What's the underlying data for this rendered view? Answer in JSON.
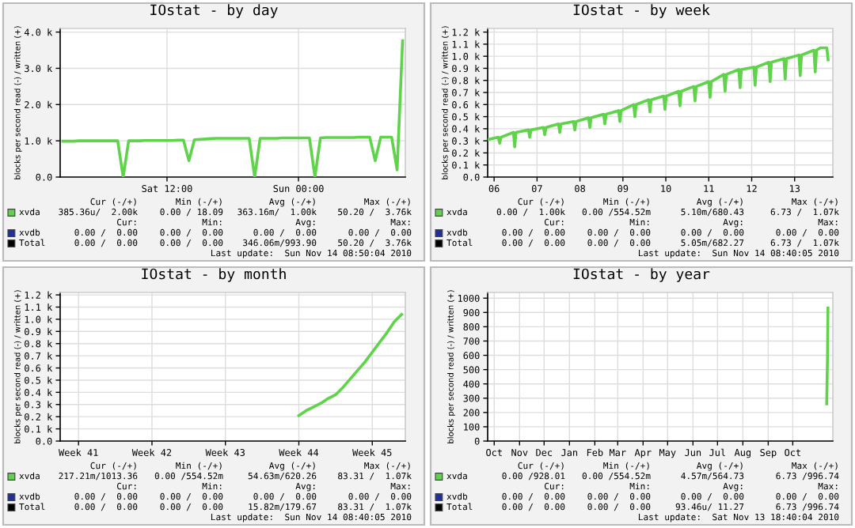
{
  "chart_data": [
    {
      "type": "line",
      "title": "IOstat - by day",
      "ylabel": "blocks per second read (-) / written (+)",
      "grid": true,
      "legend": "bottom",
      "marker": "none",
      "line_style": "solid",
      "categories": [
        null,
        null,
        null,
        null,
        null,
        null,
        null,
        null,
        null,
        null,
        null,
        null,
        null,
        null,
        null,
        null,
        null,
        null,
        null,
        "Sat 12:00",
        null,
        null,
        null,
        null,
        null,
        null,
        null,
        null,
        null,
        null,
        null,
        null,
        null,
        null,
        null,
        null,
        null,
        null,
        null,
        null,
        null,
        null,
        null,
        "Sun 00:00",
        null,
        null,
        null,
        null,
        null,
        null,
        null,
        null,
        null,
        null,
        null,
        null,
        null,
        null,
        null,
        null,
        null,
        null,
        null
      ],
      "ylim": [
        0,
        4100
      ],
      "yticks": [
        {
          "value": 0,
          "label": "0.0"
        },
        {
          "value": 1000,
          "label": "1.0 k"
        },
        {
          "value": 2000,
          "label": "2.0 k"
        },
        {
          "value": 3000,
          "label": "3.0 k"
        },
        {
          "value": 4000,
          "label": "4.0 k"
        }
      ],
      "series": [
        {
          "name": "xvda",
          "color": "#5fd34a",
          "values": [
            990,
            990,
            990,
            1000,
            1000,
            1000,
            1000,
            1000,
            1000,
            1000,
            1000,
            0,
            1000,
            1000,
            1000,
            1010,
            1010,
            1010,
            1010,
            1010,
            1010,
            1020,
            1020,
            450,
            1030,
            1040,
            1050,
            1060,
            1070,
            1070,
            1070,
            1070,
            1070,
            1070,
            1070,
            0,
            1070,
            1070,
            1070,
            1070,
            1080,
            1080,
            1080,
            1080,
            1080,
            1080,
            0,
            1080,
            1090,
            1090,
            1090,
            1090,
            1090,
            1090,
            1100,
            1100,
            1100,
            450,
            1100,
            1100,
            1100,
            200,
            3760
          ]
        },
        {
          "name": "xvdb",
          "color": "#1f2fa0",
          "values": [
            null,
            null,
            null,
            null,
            null,
            null,
            null,
            null,
            null,
            null,
            null,
            null,
            null,
            null,
            null,
            null,
            null,
            null,
            null,
            null,
            null,
            null,
            null,
            null,
            null,
            null,
            null,
            null,
            null,
            null,
            null,
            null,
            null,
            null,
            null,
            null,
            null,
            null,
            null,
            null,
            null,
            null,
            null,
            null,
            null,
            null,
            null,
            null,
            null,
            null,
            null,
            null,
            null,
            null,
            null,
            null,
            null,
            null,
            null,
            null,
            null,
            null,
            null
          ]
        },
        {
          "name": "Total",
          "color": "#000000",
          "values": [
            null,
            null,
            null,
            null,
            null,
            null,
            null,
            null,
            null,
            null,
            null,
            null,
            null,
            null,
            null,
            null,
            null,
            null,
            null,
            null,
            null,
            null,
            null,
            null,
            null,
            null,
            null,
            null,
            null,
            null,
            null,
            null,
            null,
            null,
            null,
            null,
            null,
            null,
            null,
            null,
            null,
            null,
            null,
            null,
            null,
            null,
            null,
            null,
            null,
            null,
            null,
            null,
            null,
            null,
            null,
            null,
            null,
            null,
            null,
            null,
            null,
            null,
            null
          ]
        }
      ],
      "annotations": [
        "Cur (-/+)",
        "Min (-/+)",
        "Avg (-/+)",
        "Max (-/+)",
        "385.36u/  2.00k",
        "0.00 / 18.09",
        "363.16m/  1.00k",
        "50.20 /  3.76k",
        "Cur:",
        "Min:",
        "Avg:",
        "Max:",
        "0.00 /  0.00",
        "0.00 /  0.00",
        "0.00 /  0.00",
        "0.00 /  0.00",
        "0.00 /  0.00",
        "0.00 /  0.00",
        "346.06m/993.90",
        "50.20 /  3.76k",
        "Last update:  Sun Nov 14 08:50:04 2010"
      ]
    },
    {
      "type": "line",
      "title": "IOstat - by week",
      "ylabel": "blocks per second read (-) / written (+)",
      "grid": true,
      "legend": "bottom",
      "marker": "none",
      "line_style": "solid",
      "xlim": [
        5.85,
        13.89
      ],
      "xticks": [
        {
          "value": 6,
          "label": "06"
        },
        {
          "value": 7,
          "label": "07"
        },
        {
          "value": 8,
          "label": "08"
        },
        {
          "value": 9,
          "label": "09"
        },
        {
          "value": 10,
          "label": "10"
        },
        {
          "value": 11,
          "label": "11"
        },
        {
          "value": 12,
          "label": "12"
        },
        {
          "value": 13,
          "label": "13"
        }
      ],
      "ylim": [
        0,
        1230
      ],
      "yticks": [
        {
          "value": 0,
          "label": "0.0"
        },
        {
          "value": 100,
          "label": "0.1 k"
        },
        {
          "value": 200,
          "label": "0.2 k"
        },
        {
          "value": 300,
          "label": "0.3 k"
        },
        {
          "value": 400,
          "label": "0.4 k"
        },
        {
          "value": 500,
          "label": "0.5 k"
        },
        {
          "value": 600,
          "label": "0.6 k"
        },
        {
          "value": 700,
          "label": "0.7 k"
        },
        {
          "value": 800,
          "label": "0.8 k"
        },
        {
          "value": 900,
          "label": "0.9 k"
        },
        {
          "value": 1000,
          "label": "1.0 k"
        },
        {
          "value": 1100,
          "label": "1.1 k"
        },
        {
          "value": 1200,
          "label": "1.2 k"
        }
      ],
      "series": [
        {
          "name": "xvda",
          "color": "#5fd34a",
          "x": [
            5.85,
            6.1,
            6.13,
            6.16,
            6.45,
            6.48,
            6.51,
            6.8,
            6.83,
            6.86,
            7.15,
            7.18,
            7.21,
            7.5,
            7.53,
            7.56,
            7.85,
            7.88,
            7.91,
            8.2,
            8.23,
            8.26,
            8.55,
            8.58,
            8.61,
            8.9,
            8.93,
            8.96,
            9.25,
            9.28,
            9.31,
            9.6,
            9.63,
            9.66,
            9.95,
            9.98,
            10.01,
            10.3,
            10.33,
            10.36,
            10.65,
            10.68,
            10.71,
            11.0,
            11.03,
            11.06,
            11.35,
            11.38,
            11.41,
            11.7,
            11.73,
            11.76,
            12.05,
            12.08,
            12.11,
            12.4,
            12.43,
            12.46,
            12.75,
            12.78,
            12.81,
            13.1,
            13.13,
            13.16,
            13.45,
            13.48,
            13.51,
            13.6,
            13.75,
            13.78
          ],
          "values": [
            310,
            330,
            280,
            330,
            370,
            250,
            370,
            390,
            330,
            390,
            410,
            350,
            410,
            440,
            370,
            440,
            460,
            390,
            460,
            490,
            410,
            490,
            520,
            440,
            520,
            550,
            460,
            550,
            600,
            500,
            600,
            640,
            540,
            640,
            670,
            560,
            670,
            710,
            590,
            710,
            750,
            630,
            750,
            790,
            660,
            790,
            850,
            710,
            850,
            890,
            740,
            890,
            910,
            760,
            910,
            950,
            790,
            950,
            980,
            810,
            980,
            1010,
            840,
            1010,
            1050,
            870,
            1050,
            1070,
            1070,
            970
          ]
        },
        {
          "name": "xvdb",
          "color": "#1f2fa0"
        },
        {
          "name": "Total",
          "color": "#000000"
        }
      ],
      "annotations": [
        "Cur (-/+)",
        "Min (-/+)",
        "Avg (-/+)",
        "Max (-/+)",
        "0.00 /  1.00k",
        "0.00 /554.52m",
        "5.10m/680.43",
        "6.73 /  1.07k",
        "Cur:",
        "Min:",
        "Avg:",
        "Max:",
        "0.00 /  0.00",
        "0.00 /  0.00",
        "0.00 /  0.00",
        "0.00 /  0.00",
        "0.00 /  0.00",
        "0.00 /  0.00",
        "5.05m/682.27",
        "6.73 /  1.07k",
        "Last update:  Sun Nov 14 08:40:05 2010"
      ]
    },
    {
      "type": "line",
      "title": "IOstat - by month",
      "ylabel": "blocks per second read (-) / written (+)",
      "grid": true,
      "legend": "bottom",
      "marker": "none",
      "line_style": "solid",
      "categories": [
        null,
        null,
        "Week 41",
        null,
        null,
        null,
        null,
        null,
        null,
        null,
        null,
        null,
        "Week 42",
        null,
        null,
        null,
        null,
        null,
        null,
        null,
        null,
        null,
        "Week 43",
        null,
        null,
        null,
        null,
        null,
        null,
        null,
        null,
        null,
        "Week 44",
        null,
        null,
        null,
        null,
        null,
        null,
        null,
        null,
        null,
        "Week 45",
        null,
        null,
        null,
        null
      ],
      "ylim": [
        0,
        1220
      ],
      "yticks": [
        {
          "value": 0,
          "label": "0.0"
        },
        {
          "value": 100,
          "label": "0.1 k"
        },
        {
          "value": 200,
          "label": "0.2 k"
        },
        {
          "value": 300,
          "label": "0.3 k"
        },
        {
          "value": 400,
          "label": "0.4 k"
        },
        {
          "value": 500,
          "label": "0.5 k"
        },
        {
          "value": 600,
          "label": "0.6 k"
        },
        {
          "value": 700,
          "label": "0.7 k"
        },
        {
          "value": 800,
          "label": "0.8 k"
        },
        {
          "value": 900,
          "label": "0.9 k"
        },
        {
          "value": 1000,
          "label": "1.0 k"
        },
        {
          "value": 1100,
          "label": "1.1 k"
        },
        {
          "value": 1200,
          "label": "1.2 k"
        }
      ],
      "series": [
        {
          "name": "xvda",
          "color": "#5fd34a",
          "values": [
            null,
            null,
            null,
            null,
            null,
            null,
            null,
            null,
            null,
            null,
            null,
            null,
            null,
            null,
            null,
            null,
            null,
            null,
            null,
            null,
            null,
            null,
            null,
            null,
            null,
            null,
            null,
            null,
            null,
            null,
            null,
            null,
            210,
            250,
            280,
            310,
            350,
            380,
            440,
            510,
            580,
            650,
            730,
            810,
            890,
            980,
            1040
          ]
        },
        {
          "name": "xvdb",
          "color": "#1f2fa0",
          "values": [
            null,
            null,
            null,
            null,
            null,
            null,
            null,
            null,
            null,
            null,
            null,
            null,
            null,
            null,
            null,
            null,
            null,
            null,
            null,
            null,
            null,
            null,
            null,
            null,
            null,
            null,
            null,
            null,
            null,
            null,
            null,
            null,
            null,
            null,
            null,
            null,
            null,
            null,
            null,
            null,
            null,
            null,
            null,
            null,
            null,
            null,
            null
          ]
        },
        {
          "name": "Total",
          "color": "#000000",
          "values": [
            null,
            null,
            null,
            null,
            null,
            null,
            null,
            null,
            null,
            null,
            null,
            null,
            null,
            null,
            null,
            null,
            null,
            null,
            null,
            null,
            null,
            null,
            null,
            null,
            null,
            null,
            null,
            null,
            null,
            null,
            null,
            null,
            null,
            null,
            null,
            null,
            null,
            null,
            null,
            null,
            null,
            null,
            null,
            null,
            null,
            null,
            null
          ]
        }
      ],
      "annotations": [
        "Cur (-/+)",
        "Min (-/+)",
        "Avg (-/+)",
        "Max (-/+)",
        "217.21m/1013.36",
        "0.00 /554.52m",
        "54.63m/620.26",
        "83.31 /  1.07k",
        "Cur:",
        "Min:",
        "Avg:",
        "Max:",
        "0.00 /  0.00",
        "0.00 /  0.00",
        "0.00 /  0.00",
        "0.00 /  0.00",
        "0.00 /  0.00",
        "0.00 /  0.00",
        "15.82m/179.67",
        "83.31 /  1.07k",
        "Last update:  Sun Nov 14 08:40:05 2010"
      ]
    },
    {
      "type": "line",
      "title": "IOstat - by year",
      "ylabel": "blocks per second read (-) / written (+)",
      "grid": true,
      "legend": "bottom",
      "marker": "none",
      "line_style": "solid",
      "xlim": [
        "2009-09-23",
        "2010-11-19"
      ],
      "xticks": [
        {
          "value": "2009-10-01",
          "label": "Oct"
        },
        {
          "value": "2009-11-01",
          "label": "Nov"
        },
        {
          "value": "2009-12-01",
          "label": "Dec"
        },
        {
          "value": "2010-01-01",
          "label": "Jan"
        },
        {
          "value": "2010-02-01",
          "label": "Feb"
        },
        {
          "value": "2010-03-01",
          "label": "Mar"
        },
        {
          "value": "2010-04-01",
          "label": "Apr"
        },
        {
          "value": "2010-05-01",
          "label": "May"
        },
        {
          "value": "2010-06-01",
          "label": "Jun"
        },
        {
          "value": "2010-07-01",
          "label": "Jul"
        },
        {
          "value": "2010-08-01",
          "label": "Aug"
        },
        {
          "value": "2010-09-01",
          "label": "Sep"
        },
        {
          "value": "2010-10-01",
          "label": "Oct"
        }
      ],
      "ylim": [
        0,
        1040
      ],
      "yticks": [
        0,
        100,
        200,
        300,
        400,
        500,
        600,
        700,
        800,
        900,
        1000
      ],
      "series": [
        {
          "name": "xvda",
          "color": "#5fd34a",
          "x": [
            "2010-11-11T12:00",
            "2010-11-12T12:00",
            "2010-11-13"
          ],
          "values": [
            260,
            600,
            930
          ]
        },
        {
          "name": "xvdb",
          "color": "#1f2fa0"
        },
        {
          "name": "Total",
          "color": "#000000"
        }
      ],
      "annotations": [
        "Cur (-/+)",
        "Min (-/+)",
        "Avg (-/+)",
        "Max (-/+)",
        "0.00 /928.01",
        "0.00 /554.52m",
        "4.57m/564.73",
        "6.73 /996.74",
        "Cur:",
        "Min:",
        "Avg:",
        "Max:",
        "0.00 /  0.00",
        "0.00 /  0.00",
        "0.00 /  0.00",
        "0.00 /  0.00",
        "0.00 /  0.00",
        "0.00 /  0.00",
        "93.46u/ 11.27",
        "6.73 /996.74",
        "Last update:  Sat Nov 13 18:40:04 2010"
      ]
    }
  ]
}
